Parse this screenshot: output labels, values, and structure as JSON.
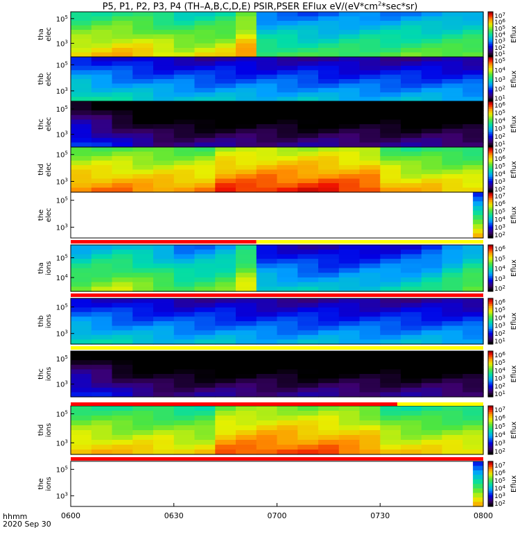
{
  "title": "P5, P1, P2, P3, P4 (TH–A,B,C,D,E) PSIR,PSER EFlux eV/(eV*cm",
  "title_sup": "2",
  "title_tail": "*sec*sr)",
  "footer": {
    "row_label": "hhmm",
    "date": "2020 Sep 30"
  },
  "colors": {
    "ok_bar": "#ffff00",
    "flag_bar": "#ff0000"
  },
  "chart_data": {
    "type": "heatmap",
    "x_ticks": [
      "0600",
      "0630",
      "0700",
      "0730",
      "0800"
    ],
    "x_range": [
      "06:00",
      "08:00"
    ],
    "colorbar_label": "Eflux",
    "panels": [
      {
        "name": "tha elec",
        "row1": "tha",
        "row2": "elec",
        "y_ticks": [
          {
            "base": "10",
            "exp": "5",
            "v": 100000.0
          },
          {
            "base": "10",
            "exp": "3",
            "v": 1000.0
          }
        ],
        "y_log_range": [
          1.9,
          5.55
        ],
        "cb_ticks": [
          {
            "base": "10",
            "exp": "7"
          },
          {
            "base": "10",
            "exp": "6"
          },
          {
            "base": "10",
            "exp": "5"
          },
          {
            "base": "10",
            "exp": "4"
          },
          {
            "base": "10",
            "exp": "3"
          },
          {
            "base": "10",
            "exp": "2"
          },
          {
            "base": "10",
            "exp": "1"
          }
        ],
        "flux_profile": [
          5.8,
          5.9,
          6.0,
          5.9,
          5.7,
          5.5,
          5.6,
          5.7,
          6.3,
          4.6,
          4.6,
          4.5,
          4.5,
          4.6,
          4.7,
          4.7,
          4.8,
          4.8,
          4.9,
          5.0
        ]
      },
      {
        "name": "thb elec",
        "row1": "thb",
        "row2": "elec",
        "y_ticks": [
          {
            "base": "10",
            "exp": "5",
            "v": 100000.0
          },
          {
            "base": "10",
            "exp": "3",
            "v": 1000.0
          }
        ],
        "y_log_range": [
          2.2,
          5.6
        ],
        "cb_ticks": [
          {
            "base": "10",
            "exp": "5"
          },
          {
            "base": "10",
            "exp": "4"
          },
          {
            "base": "10",
            "exp": "3"
          },
          {
            "base": "10",
            "exp": "2"
          },
          {
            "base": "10",
            "exp": "1"
          }
        ],
        "flux_profile": [
          4.2,
          4.0,
          3.9,
          3.8,
          3.7,
          3.7,
          3.6,
          3.6,
          3.6,
          3.6,
          3.6,
          3.6,
          3.5,
          3.5,
          3.5,
          3.5,
          3.5,
          3.5,
          3.5,
          3.5
        ]
      },
      {
        "name": "thc elec",
        "row1": "thc",
        "row2": "elec",
        "y_ticks": [
          {
            "base": "10",
            "exp": "5",
            "v": 100000.0
          },
          {
            "base": "10",
            "exp": "3",
            "v": 1000.0
          }
        ],
        "y_log_range": [
          2.0,
          5.6
        ],
        "cb_ticks": [
          {
            "base": "10",
            "exp": "6"
          },
          {
            "base": "10",
            "exp": "5"
          },
          {
            "base": "10",
            "exp": "4"
          },
          {
            "base": "10",
            "exp": "3"
          },
          {
            "base": "10",
            "exp": "2"
          },
          {
            "base": "10",
            "exp": "1"
          }
        ],
        "flux_profile": [
          2.8,
          2.5,
          2.2,
          2.0,
          1.8,
          1.8,
          1.8,
          1.8,
          1.8,
          1.8,
          1.8,
          1.8,
          1.8,
          1.8,
          1.8,
          1.8,
          1.8,
          1.8,
          1.8,
          1.8
        ]
      },
      {
        "name": "thd elec",
        "row1": "thd",
        "row2": "elec",
        "y_ticks": [
          {
            "base": "10",
            "exp": "5",
            "v": 100000.0
          },
          {
            "base": "10",
            "exp": "3",
            "v": 1000.0
          }
        ],
        "y_log_range": [
          2.2,
          5.55
        ],
        "cb_ticks": [
          {
            "base": "10",
            "exp": "7"
          },
          {
            "base": "10",
            "exp": "6"
          },
          {
            "base": "10",
            "exp": "5"
          },
          {
            "base": "10",
            "exp": "4"
          },
          {
            "base": "10",
            "exp": "3"
          },
          {
            "base": "10",
            "exp": "2"
          }
        ],
        "flux_profile": [
          6.4,
          6.4,
          6.4,
          6.3,
          6.3,
          6.3,
          6.3,
          6.8,
          6.8,
          6.9,
          6.9,
          6.9,
          6.9,
          6.8,
          6.8,
          6.2,
          6.0,
          6.0,
          5.9,
          5.9
        ]
      },
      {
        "name": "the elec",
        "row1": "the",
        "row2": "elec",
        "y_ticks": [
          {
            "base": "10",
            "exp": "5",
            "v": 100000.0
          },
          {
            "base": "10",
            "exp": "3",
            "v": 1000.0
          }
        ],
        "y_log_range": [
          2.2,
          5.6
        ],
        "cb_ticks": [
          {
            "base": "10",
            "exp": "7"
          },
          {
            "base": "10",
            "exp": "6"
          },
          {
            "base": "10",
            "exp": "5"
          },
          {
            "base": "10",
            "exp": "4"
          },
          {
            "base": "10",
            "exp": "3"
          },
          {
            "base": "10",
            "exp": "2"
          }
        ],
        "flux_profile": [],
        "data_from": "07:57"
      },
      {
        "name": "tha ions",
        "row1": "tha",
        "row2": "ions",
        "y_ticks": [
          {
            "base": "10",
            "exp": "5",
            "v": 100000.0
          },
          {
            "base": "10",
            "exp": "4",
            "v": 10000.0
          }
        ],
        "y_log_range": [
          3.3,
          5.65
        ],
        "cb_ticks": [
          {
            "base": "10",
            "exp": "6"
          },
          {
            "base": "10",
            "exp": "5"
          },
          {
            "base": "10",
            "exp": "4"
          },
          {
            "base": "10",
            "exp": "3"
          },
          {
            "base": "10",
            "exp": "2"
          }
        ],
        "flux_profile": [
          5.0,
          5.2,
          5.3,
          5.1,
          4.9,
          4.6,
          4.7,
          4.9,
          5.6,
          3.9,
          3.8,
          3.7,
          3.6,
          3.7,
          3.8,
          3.9,
          4.0,
          4.2,
          4.6,
          5.0
        ]
      },
      {
        "name": "thb ions",
        "row1": "thb",
        "row2": "ions",
        "y_ticks": [
          {
            "base": "10",
            "exp": "5",
            "v": 100000.0
          },
          {
            "base": "10",
            "exp": "3",
            "v": 1000.0
          }
        ],
        "y_log_range": [
          2.2,
          5.65
        ],
        "cb_ticks": [
          {
            "base": "10",
            "exp": "6"
          },
          {
            "base": "10",
            "exp": "5"
          },
          {
            "base": "10",
            "exp": "4"
          },
          {
            "base": "10",
            "exp": "3"
          },
          {
            "base": "10",
            "exp": "2"
          },
          {
            "base": "10",
            "exp": "1"
          }
        ],
        "flux_profile": [
          4.0,
          3.9,
          3.8,
          3.7,
          3.7,
          3.6,
          3.6,
          3.6,
          3.5,
          3.5,
          3.5,
          3.5,
          3.5,
          3.5,
          3.5,
          3.5,
          3.5,
          3.5,
          3.5,
          3.5
        ]
      },
      {
        "name": "thc ions",
        "row1": "thc",
        "row2": "ions",
        "y_ticks": [
          {
            "base": "10",
            "exp": "5",
            "v": 100000.0
          },
          {
            "base": "10",
            "exp": "3",
            "v": 1000.0
          }
        ],
        "y_log_range": [
          2.0,
          5.6
        ],
        "cb_ticks": [
          {
            "base": "10",
            "exp": "6"
          },
          {
            "base": "10",
            "exp": "5"
          },
          {
            "base": "10",
            "exp": "4"
          },
          {
            "base": "10",
            "exp": "3"
          },
          {
            "base": "10",
            "exp": "2"
          },
          {
            "base": "10",
            "exp": "1"
          }
        ],
        "flux_profile": [
          2.6,
          2.4,
          2.1,
          1.9,
          1.8,
          1.8,
          1.8,
          1.8,
          1.8,
          1.8,
          1.8,
          1.8,
          1.8,
          1.8,
          1.8,
          1.8,
          1.8,
          1.8,
          1.8,
          1.8
        ]
      },
      {
        "name": "thd ions",
        "row1": "thd",
        "row2": "ions",
        "y_ticks": [
          {
            "base": "10",
            "exp": "5",
            "v": 100000.0
          },
          {
            "base": "10",
            "exp": "3",
            "v": 1000.0
          }
        ],
        "y_log_range": [
          2.2,
          5.55
        ],
        "cb_ticks": [
          {
            "base": "10",
            "exp": "7"
          },
          {
            "base": "10",
            "exp": "6"
          },
          {
            "base": "10",
            "exp": "5"
          },
          {
            "base": "10",
            "exp": "4"
          },
          {
            "base": "10",
            "exp": "3"
          },
          {
            "base": "10",
            "exp": "2"
          }
        ],
        "flux_profile": [
          6.0,
          6.0,
          5.9,
          5.9,
          5.9,
          5.8,
          5.8,
          6.5,
          6.6,
          6.7,
          6.7,
          6.6,
          6.6,
          6.5,
          6.4,
          5.9,
          5.8,
          5.8,
          5.8,
          5.8
        ]
      },
      {
        "name": "the ions",
        "row1": "the",
        "row2": "ions",
        "y_ticks": [
          {
            "base": "10",
            "exp": "5",
            "v": 100000.0
          },
          {
            "base": "10",
            "exp": "3",
            "v": 1000.0
          }
        ],
        "y_log_range": [
          2.2,
          5.6
        ],
        "cb_ticks": [
          {
            "base": "10",
            "exp": "7"
          },
          {
            "base": "10",
            "exp": "6"
          },
          {
            "base": "10",
            "exp": "5"
          },
          {
            "base": "10",
            "exp": "4"
          },
          {
            "base": "10",
            "exp": "3"
          },
          {
            "base": "10",
            "exp": "2"
          }
        ],
        "flux_profile": [],
        "data_from": "07:57"
      }
    ],
    "flag_bars": [
      {
        "after": "the elec",
        "red_until": "06:54",
        "yellow_until": "08:00"
      },
      {
        "after": "tha ions",
        "red_until": "08:00",
        "yellow_until": "08:00"
      },
      {
        "after": "thb ions",
        "red_until": "06:00",
        "yellow_until": "08:00"
      },
      {
        "after": "thc ions",
        "red_until": "07:35",
        "yellow_until": "08:00"
      },
      {
        "after": "thd ions",
        "red_until": "08:00",
        "yellow_until": "08:00"
      }
    ]
  }
}
